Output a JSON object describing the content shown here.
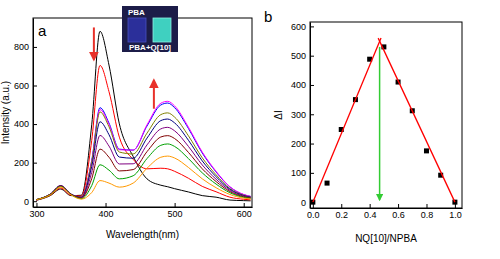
{
  "chart_data": [
    {
      "type": "line",
      "title": "a",
      "x_label": "Wavelength(nm)",
      "y_label": "Intensity (a.u.)",
      "annotations": [
        "PBA",
        "PBA+Q[10]"
      ],
      "x": [
        300,
        320,
        335,
        350,
        365,
        380,
        392,
        405,
        420,
        440,
        460,
        480,
        490,
        500,
        520,
        540,
        560,
        580,
        600,
        610
      ],
      "xlim": [
        295,
        612
      ],
      "ylim": [
        -30,
        950
      ],
      "xticks": [
        300,
        400,
        500,
        600
      ],
      "yticks": [
        0,
        200,
        400,
        600,
        800
      ],
      "series": [
        {
          "color": "#000000",
          "values": [
            5,
            29,
            63,
            29,
            31,
            396,
            881,
            706,
            401,
            232,
            116,
            83,
            75,
            65,
            48,
            29,
            21,
            6,
            3,
            2
          ]
        },
        {
          "color": "#ff0000",
          "values": [
            6,
            31,
            68,
            31,
            27,
            315,
            704,
            568,
            332,
            217,
            168,
            171,
            168,
            155,
            119,
            77,
            49,
            21,
            10,
            7
          ]
        },
        {
          "color": "#0000ff",
          "values": [
            8,
            37,
            81,
            37,
            22,
            212,
            485,
            405,
            270,
            265,
            390,
            499,
            509,
            485,
            377,
            250,
            152,
            74,
            34,
            25
          ]
        },
        {
          "color": "#ff00ff",
          "values": [
            8,
            37,
            81,
            37,
            22,
            207,
            475,
            398,
            267,
            265,
            396,
            508,
            518,
            494,
            384,
            255,
            155,
            75,
            35,
            25
          ]
        },
        {
          "color": "#808000",
          "values": [
            8,
            37,
            81,
            37,
            22,
            203,
            463,
            386,
            255,
            245,
            353,
            449,
            458,
            436,
            339,
            225,
            137,
            66,
            31,
            22
          ]
        },
        {
          "color": "#000080",
          "values": [
            8,
            36,
            80,
            36,
            20,
            180,
            412,
            345,
            229,
            223,
            327,
            418,
            426,
            406,
            316,
            209,
            127,
            62,
            29,
            21
          ]
        },
        {
          "color": "#800080",
          "values": [
            8,
            35,
            79,
            35,
            18,
            149,
            341,
            286,
            193,
            194,
            292,
            375,
            383,
            365,
            284,
            188,
            114,
            56,
            26,
            19
          ]
        },
        {
          "color": "#800000",
          "values": [
            8,
            35,
            77,
            35,
            16,
            117,
            270,
            228,
            157,
            164,
            257,
            333,
            340,
            325,
            253,
            168,
            102,
            50,
            23,
            17
          ]
        },
        {
          "color": "#00a000",
          "values": [
            8,
            34,
            76,
            34,
            13,
            81,
            189,
            161,
            116,
            132,
            221,
            290,
            297,
            284,
            221,
            147,
            89,
            44,
            20,
            15
          ]
        },
        {
          "color": "#ff9900",
          "values": [
            8,
            33,
            74,
            33,
            11,
            45,
            107,
            94,
            73,
            94,
            171,
            228,
            234,
            224,
            175,
            116,
            70,
            35,
            16,
            12
          ]
        }
      ]
    },
    {
      "type": "scatter",
      "title": "b",
      "x_label": "NQ[10]/NPBA",
      "y_label": "ΔI",
      "xlim": [
        -0.02,
        1.05
      ],
      "ylim": [
        -20,
        615
      ],
      "xticks": [
        {
          "value": 0,
          "label": "0.0"
        },
        0.2,
        0.4,
        0.6,
        0.8,
        {
          "value": 1,
          "label": "1.0"
        }
      ],
      "yticks": [
        0,
        100,
        200,
        300,
        400,
        500,
        600
      ],
      "series": [
        {
          "type": "scatter",
          "color": "#000000",
          "marker": "square",
          "x": [
            0,
            0.1,
            0.2,
            0.3,
            0.4,
            0.5,
            0.6,
            0.7,
            0.8,
            0.9,
            1.0
          ],
          "values": [
            0,
            65,
            248,
            350,
            488,
            530,
            410,
            312,
            175,
            92,
            0
          ]
        },
        {
          "type": "line",
          "color": "#ff0000",
          "x": [
            0,
            0.48
          ],
          "values": [
            0,
            560
          ]
        },
        {
          "type": "line",
          "color": "#ff0000",
          "x": [
            0.46,
            1.0
          ],
          "values": [
            560,
            0
          ]
        },
        {
          "type": "arrow",
          "color": "#33cc33",
          "x": [
            0.47,
            0.47
          ],
          "values": [
            530,
            8
          ]
        }
      ]
    }
  ]
}
